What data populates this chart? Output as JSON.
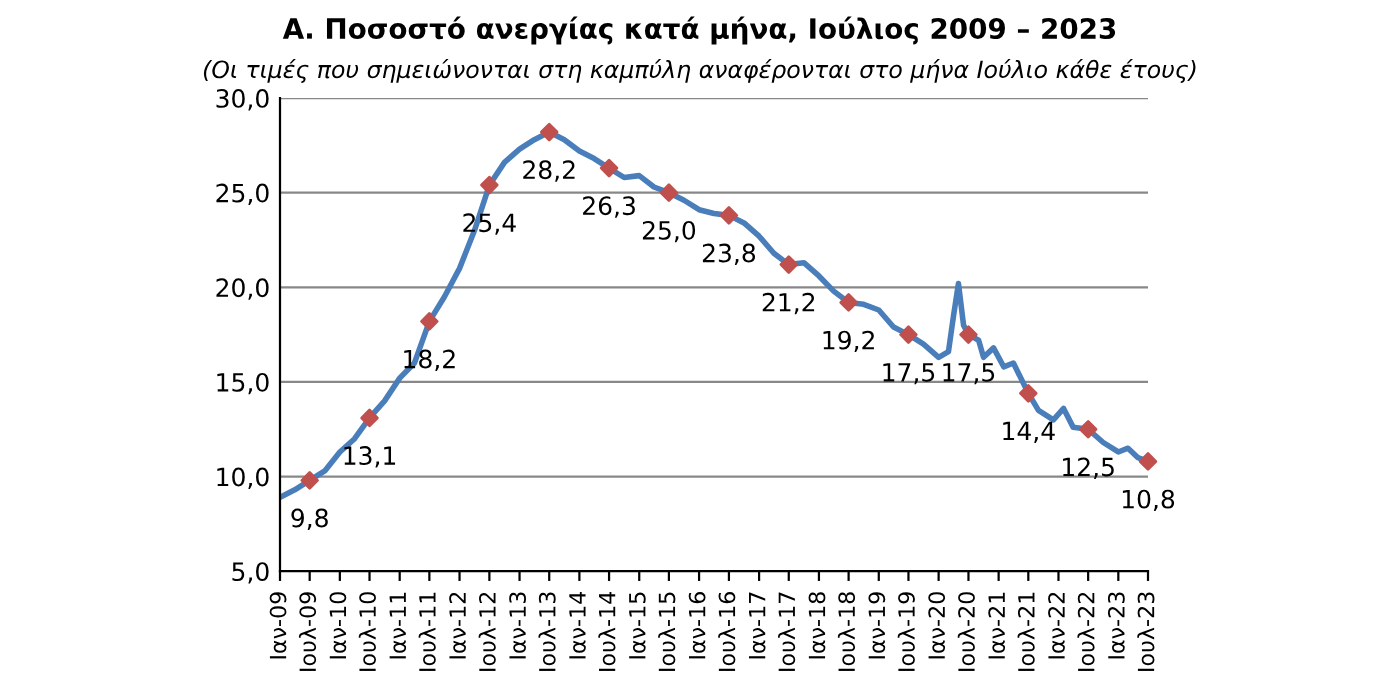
{
  "chart_data": {
    "type": "line",
    "title": "Α. Ποσοστό ανεργίας κατά μήνα, Ιούλιος 2009 – 2023",
    "subtitle": "(Οι τιμές που σημειώνονται στη καμπύλη αναφέρονται στο μήνα Ιούλιο κάθε έτους)",
    "series": [
      {
        "color": "#4a7ebb",
        "x": [
          "2009-01",
          "2009-04",
          "2009-07",
          "2009-10",
          "2010-01",
          "2010-04",
          "2010-07",
          "2010-10",
          "2011-01",
          "2011-04",
          "2011-07",
          "2011-10",
          "2012-01",
          "2012-04",
          "2012-07",
          "2012-10",
          "2013-01",
          "2013-04",
          "2013-07",
          "2013-10",
          "2014-01",
          "2014-04",
          "2014-07",
          "2014-10",
          "2015-01",
          "2015-04",
          "2015-07",
          "2015-10",
          "2016-01",
          "2016-04",
          "2016-07",
          "2016-10",
          "2017-01",
          "2017-04",
          "2017-07",
          "2017-10",
          "2018-01",
          "2018-04",
          "2018-07",
          "2018-10",
          "2019-01",
          "2019-04",
          "2019-07",
          "2019-10",
          "2020-01",
          "2020-03",
          "2020-04",
          "2020-05",
          "2020-06",
          "2020-07",
          "2020-09",
          "2020-10",
          "2020-12",
          "2021-02",
          "2021-04",
          "2021-07",
          "2021-09",
          "2021-12",
          "2022-02",
          "2022-04",
          "2022-07",
          "2022-10",
          "2023-01",
          "2023-03",
          "2023-05",
          "2023-07"
        ],
        "values": [
          8.9,
          9.3,
          9.8,
          10.3,
          11.3,
          12.0,
          13.1,
          14.0,
          15.2,
          16.0,
          18.2,
          19.5,
          21.0,
          23.0,
          25.4,
          26.6,
          27.3,
          27.8,
          28.2,
          27.8,
          27.2,
          26.8,
          26.3,
          25.8,
          25.9,
          25.3,
          25.0,
          24.6,
          24.1,
          23.9,
          23.8,
          23.4,
          22.7,
          21.8,
          21.2,
          21.3,
          20.6,
          19.8,
          19.2,
          19.1,
          18.8,
          17.9,
          17.5,
          17.0,
          16.3,
          16.6,
          18.5,
          20.2,
          18.0,
          17.5,
          17.2,
          16.3,
          16.8,
          15.8,
          16.0,
          14.4,
          13.5,
          13.0,
          13.6,
          12.6,
          12.5,
          11.8,
          11.3,
          11.5,
          11.0,
          10.8
        ]
      },
      {
        "type": "scatter",
        "color": "#c0504d",
        "marker": "diamond",
        "x": [
          "2009-07",
          "2010-07",
          "2011-07",
          "2012-07",
          "2013-07",
          "2014-07",
          "2015-07",
          "2016-07",
          "2017-07",
          "2018-07",
          "2019-07",
          "2020-07",
          "2021-07",
          "2022-07",
          "2023-07"
        ],
        "values": [
          9.8,
          13.1,
          18.2,
          25.4,
          28.2,
          26.3,
          25.0,
          23.8,
          21.2,
          19.2,
          17.5,
          17.5,
          14.4,
          12.5,
          10.8
        ],
        "value_labels": [
          "9,8",
          "13,1",
          "18,2",
          "25,4",
          "28,2",
          "26,3",
          "25,0",
          "23,8",
          "21,2",
          "19,2",
          "17,5",
          "17,5",
          "14,4",
          "12,5",
          "10,8"
        ]
      }
    ],
    "xlim": [
      "2009-01",
      "2023-07"
    ],
    "xticks": [
      {
        "value": "2009-01",
        "label": "Ιαν-09"
      },
      {
        "value": "2009-07",
        "label": "Ιουλ-09"
      },
      {
        "value": "2010-01",
        "label": "Ιαν-10"
      },
      {
        "value": "2010-07",
        "label": "Ιουλ-10"
      },
      {
        "value": "2011-01",
        "label": "Ιαν-11"
      },
      {
        "value": "2011-07",
        "label": "Ιουλ-11"
      },
      {
        "value": "2012-01",
        "label": "Ιαν-12"
      },
      {
        "value": "2012-07",
        "label": "Ιουλ-12"
      },
      {
        "value": "2013-01",
        "label": "Ιαν-13"
      },
      {
        "value": "2013-07",
        "label": "Ιουλ-13"
      },
      {
        "value": "2014-01",
        "label": "Ιαν-14"
      },
      {
        "value": "2014-07",
        "label": "Ιουλ-14"
      },
      {
        "value": "2015-01",
        "label": "Ιαν-15"
      },
      {
        "value": "2015-07",
        "label": "Ιουλ-15"
      },
      {
        "value": "2016-01",
        "label": "Ιαν-16"
      },
      {
        "value": "2016-07",
        "label": "Ιουλ-16"
      },
      {
        "value": "2017-01",
        "label": "Ιαν-17"
      },
      {
        "value": "2017-07",
        "label": "Ιουλ-17"
      },
      {
        "value": "2018-01",
        "label": "Ιαν-18"
      },
      {
        "value": "2018-07",
        "label": "Ιουλ-18"
      },
      {
        "value": "2019-01",
        "label": "Ιαν-19"
      },
      {
        "value": "2019-07",
        "label": "Ιουλ-19"
      },
      {
        "value": "2020-01",
        "label": "Ιαν-20"
      },
      {
        "value": "2020-07",
        "label": "Ιουλ-20"
      },
      {
        "value": "2021-01",
        "label": "Ιαν-21"
      },
      {
        "value": "2021-07",
        "label": "Ιουλ-21"
      },
      {
        "value": "2022-01",
        "label": "Ιαν-22"
      },
      {
        "value": "2022-07",
        "label": "Ιουλ-22"
      },
      {
        "value": "2023-01",
        "label": "Ιαν-23"
      },
      {
        "value": "2023-07",
        "label": "Ιουλ-23"
      }
    ],
    "ylim": [
      5,
      30
    ],
    "yticks": [
      {
        "value": 5,
        "label": "5,0"
      },
      {
        "value": 10,
        "label": "10,0"
      },
      {
        "value": 15,
        "label": "15,0"
      },
      {
        "value": 20,
        "label": "20,0"
      },
      {
        "value": 25,
        "label": "25,0"
      },
      {
        "value": 30,
        "label": "30,0"
      }
    ],
    "grid": "y",
    "legend": false
  }
}
